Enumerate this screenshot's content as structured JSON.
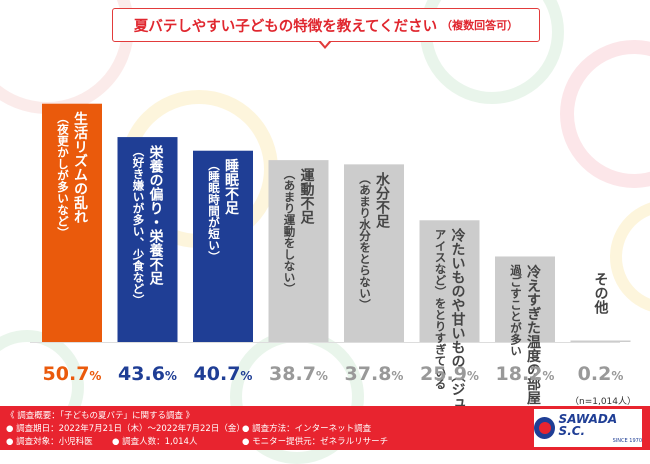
{
  "title": {
    "main": "夏バテしやすい子どもの特徴を教えてください",
    "note": "（複数回答可）"
  },
  "chart_data": {
    "type": "bar",
    "title": "夏バテしやすい子どもの特徴を教えてください（複数回答可）",
    "ylim": [
      0,
      60
    ],
    "categories": [
      {
        "line1": "生活リズムの乱れ",
        "line2": "（夜更かしが多いなど）"
      },
      {
        "line1": "栄養の偏り・栄養不足",
        "line2": "（好き嫌いが多い、少食など）"
      },
      {
        "line1": "睡眠不足",
        "line2": "（睡眠時間が短い）"
      },
      {
        "line1": "運動不足",
        "line2": "（あまり運動をしない）"
      },
      {
        "line1": "水分不足",
        "line2": "（あまり水分をとらない）"
      },
      {
        "line1": "冷たいものや甘いもの（ジュースや",
        "line2": "アイスなど）をとりすぎている"
      },
      {
        "line1": "冷えすぎた温度の部屋で",
        "line2": "過ごすことが多い"
      },
      {
        "line1": "その他",
        "line2": ""
      }
    ],
    "values": [
      50.7,
      43.6,
      40.7,
      38.7,
      37.8,
      25.9,
      18.2,
      0.2
    ],
    "value_labels": [
      {
        "num": "50.7",
        "unit": "%"
      },
      {
        "num": "43.6",
        "unit": "%"
      },
      {
        "num": "40.7",
        "unit": "%"
      },
      {
        "num": "38.7",
        "unit": "%"
      },
      {
        "num": "37.8",
        "unit": "%"
      },
      {
        "num": "25.9",
        "unit": "%"
      },
      {
        "num": "18.2",
        "unit": "%"
      },
      {
        "num": "0.2",
        "unit": "%"
      }
    ],
    "colors": [
      "#ea5a0c",
      "#1f3e95",
      "#1f3e95",
      "#cccccc",
      "#cccccc",
      "#cccccc",
      "#cccccc",
      "#cccccc"
    ],
    "label_colors": [
      "#ea5a0c",
      "#1f3e95",
      "#1f3e95",
      "#999999",
      "#999999",
      "#999999",
      "#999999",
      "#999999"
    ]
  },
  "sample_size": "（n=1,014人）",
  "footer": {
    "line1": "《 調査概要：「子どもの夏バテ」に関する調査 》",
    "period": "● 調査期日：2022年7月21日（木）〜2022年7月22日（金）",
    "target": "● 調査対象：小児科医",
    "count": "● 調査人数：1,014人",
    "method": "● 調査方法：インターネット調査",
    "provider": "● モニター提供元：ゼネラルリサーチ"
  },
  "logo": {
    "text": "SAWADA S.C.",
    "sub": "SINCE 1970"
  },
  "colors": {
    "accent_red": "#e8242f",
    "orange": "#ea5a0c",
    "navy": "#1f3e95",
    "gray": "#cccccc"
  }
}
